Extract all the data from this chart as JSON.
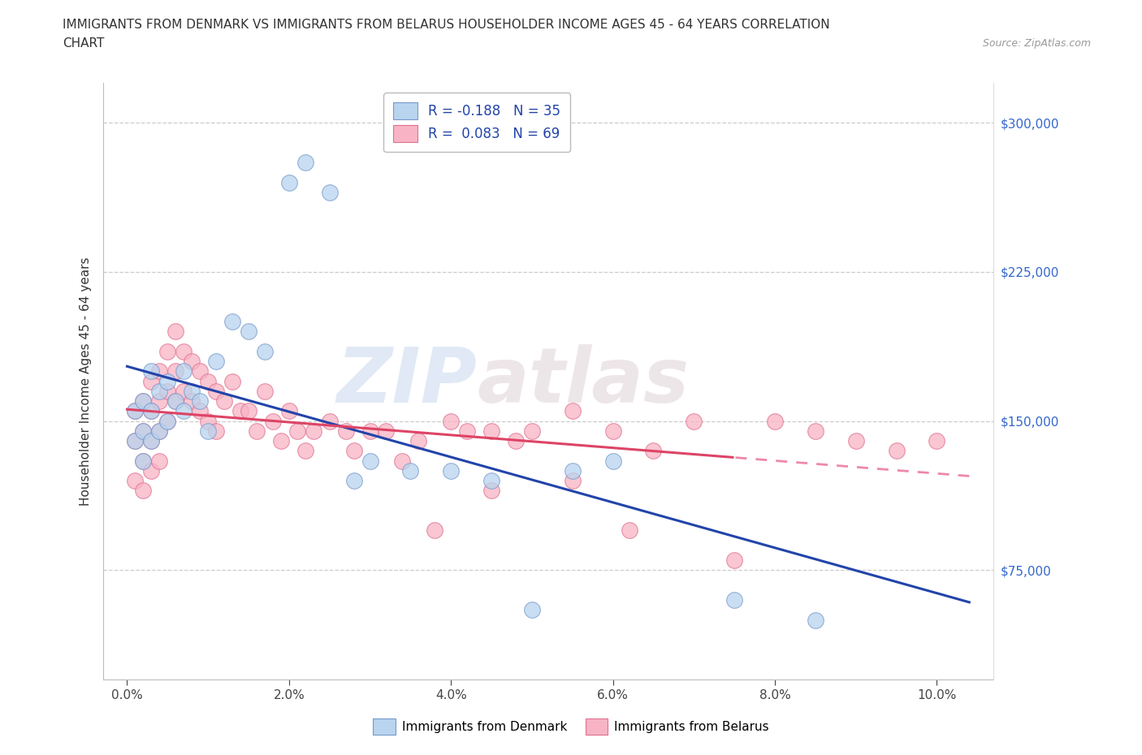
{
  "title_line1": "IMMIGRANTS FROM DENMARK VS IMMIGRANTS FROM BELARUS HOUSEHOLDER INCOME AGES 45 - 64 YEARS CORRELATION",
  "title_line2": "CHART",
  "source_text": "Source: ZipAtlas.com",
  "ylabel": "Householder Income Ages 45 - 64 years",
  "xlabel_ticks": [
    "0.0%",
    "2.0%",
    "4.0%",
    "6.0%",
    "8.0%",
    "10.0%"
  ],
  "xlabel_vals": [
    0.0,
    0.02,
    0.04,
    0.06,
    0.08,
    0.1
  ],
  "ylabel_ticks": [
    "$75,000",
    "$150,000",
    "$225,000",
    "$300,000"
  ],
  "ylabel_vals": [
    75000,
    150000,
    225000,
    300000
  ],
  "xlim": [
    -0.003,
    0.107
  ],
  "ylim": [
    20000,
    320000
  ],
  "denmark_color": "#b8d4ee",
  "belarus_color": "#f8b4c4",
  "denmark_edge": "#7799cc",
  "belarus_edge": "#e07090",
  "denmark_R": -0.188,
  "denmark_N": 35,
  "belarus_R": 0.083,
  "belarus_N": 69,
  "trend_denmark_color": "#2244aa",
  "trend_belarus_color": "#dd4466",
  "trend_belarus_dashed_color": "#ee88aa",
  "watermark_top": "ZIP",
  "watermark_bottom": "atlas",
  "grid_color": "#cccccc",
  "denmark_x": [
    0.001,
    0.001,
    0.002,
    0.002,
    0.002,
    0.003,
    0.003,
    0.003,
    0.004,
    0.004,
    0.005,
    0.005,
    0.006,
    0.007,
    0.007,
    0.008,
    0.009,
    0.01,
    0.011,
    0.013,
    0.015,
    0.017,
    0.02,
    0.022,
    0.025,
    0.03,
    0.035,
    0.04,
    0.045,
    0.05,
    0.06,
    0.075,
    0.085,
    0.055,
    0.028
  ],
  "denmark_y": [
    155000,
    140000,
    145000,
    130000,
    160000,
    175000,
    155000,
    140000,
    165000,
    145000,
    170000,
    150000,
    160000,
    175000,
    155000,
    165000,
    160000,
    145000,
    180000,
    200000,
    195000,
    185000,
    270000,
    280000,
    265000,
    130000,
    125000,
    125000,
    120000,
    55000,
    130000,
    60000,
    50000,
    125000,
    120000
  ],
  "belarus_x": [
    0.001,
    0.001,
    0.001,
    0.002,
    0.002,
    0.002,
    0.002,
    0.003,
    0.003,
    0.003,
    0.003,
    0.004,
    0.004,
    0.004,
    0.004,
    0.005,
    0.005,
    0.005,
    0.006,
    0.006,
    0.006,
    0.007,
    0.007,
    0.008,
    0.008,
    0.009,
    0.009,
    0.01,
    0.01,
    0.011,
    0.011,
    0.012,
    0.013,
    0.014,
    0.015,
    0.016,
    0.017,
    0.018,
    0.019,
    0.02,
    0.021,
    0.022,
    0.023,
    0.025,
    0.027,
    0.028,
    0.03,
    0.032,
    0.034,
    0.036,
    0.04,
    0.042,
    0.045,
    0.048,
    0.05,
    0.055,
    0.06,
    0.065,
    0.07,
    0.075,
    0.08,
    0.085,
    0.09,
    0.095,
    0.1,
    0.045,
    0.055,
    0.038,
    0.062
  ],
  "belarus_y": [
    155000,
    140000,
    120000,
    160000,
    145000,
    130000,
    115000,
    170000,
    155000,
    140000,
    125000,
    175000,
    160000,
    145000,
    130000,
    185000,
    165000,
    150000,
    195000,
    175000,
    160000,
    185000,
    165000,
    180000,
    160000,
    175000,
    155000,
    170000,
    150000,
    165000,
    145000,
    160000,
    170000,
    155000,
    155000,
    145000,
    165000,
    150000,
    140000,
    155000,
    145000,
    135000,
    145000,
    150000,
    145000,
    135000,
    145000,
    145000,
    130000,
    140000,
    150000,
    145000,
    145000,
    140000,
    145000,
    155000,
    145000,
    135000,
    150000,
    80000,
    150000,
    145000,
    140000,
    135000,
    140000,
    115000,
    120000,
    95000,
    95000
  ]
}
